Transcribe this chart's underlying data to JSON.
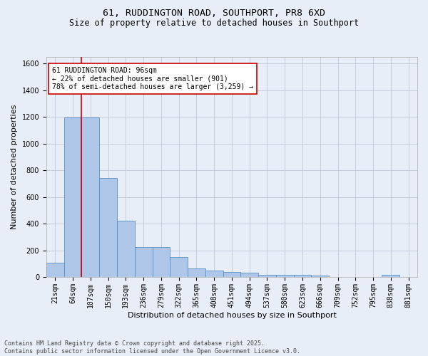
{
  "title": "61, RUDDINGTON ROAD, SOUTHPORT, PR8 6XD",
  "subtitle": "Size of property relative to detached houses in Southport",
  "xlabel": "Distribution of detached houses by size in Southport",
  "ylabel": "Number of detached properties",
  "categories": [
    "21sqm",
    "64sqm",
    "107sqm",
    "150sqm",
    "193sqm",
    "236sqm",
    "279sqm",
    "322sqm",
    "365sqm",
    "408sqm",
    "451sqm",
    "494sqm",
    "537sqm",
    "580sqm",
    "623sqm",
    "666sqm",
    "709sqm",
    "752sqm",
    "795sqm",
    "838sqm",
    "881sqm"
  ],
  "values": [
    105,
    1195,
    1195,
    740,
    420,
    225,
    225,
    150,
    65,
    50,
    35,
    30,
    18,
    18,
    15,
    10,
    0,
    0,
    0,
    15,
    0
  ],
  "bar_color": "#aec6e8",
  "bar_edge_color": "#5a8fc0",
  "grid_color": "#c0c8d8",
  "background_color": "#e8eef8",
  "vline_x_index": 2,
  "vline_color": "#cc0000",
  "annotation_text": "61 RUDDINGTON ROAD: 96sqm\n← 22% of detached houses are smaller (901)\n78% of semi-detached houses are larger (3,259) →",
  "annotation_box_color": "#ffffff",
  "annotation_box_edge_color": "#cc0000",
  "footer_line1": "Contains HM Land Registry data © Crown copyright and database right 2025.",
  "footer_line2": "Contains public sector information licensed under the Open Government Licence v3.0.",
  "ylim": [
    0,
    1650
  ],
  "yticks": [
    0,
    200,
    400,
    600,
    800,
    1000,
    1200,
    1400,
    1600
  ],
  "title_fontsize": 9.5,
  "subtitle_fontsize": 8.5,
  "axis_label_fontsize": 8.0,
  "tick_fontsize": 7.0,
  "annotation_fontsize": 7.0,
  "footer_fontsize": 6.0
}
